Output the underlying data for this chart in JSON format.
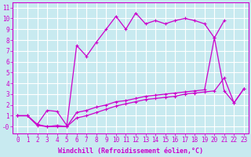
{
  "background_color": "#c8eaf0",
  "grid_color": "#ffffff",
  "line_color": "#cc00cc",
  "marker": "+",
  "markersize": 3.5,
  "linewidth": 0.9,
  "xlabel": "Windchill (Refroidissement éolien,°C)",
  "xlabel_fontsize": 6.0,
  "tick_fontsize": 5.5,
  "xlim": [
    -0.5,
    23.5
  ],
  "ylim": [
    -0.6,
    11.5
  ],
  "xticks": [
    0,
    1,
    2,
    3,
    4,
    5,
    6,
    7,
    8,
    9,
    10,
    11,
    12,
    13,
    14,
    15,
    16,
    17,
    18,
    19,
    20,
    21,
    22,
    23
  ],
  "yticks": [
    0,
    1,
    2,
    3,
    4,
    5,
    6,
    7,
    8,
    9,
    10,
    11
  ],
  "ytick_labels": [
    "-0",
    "1",
    "2",
    "3",
    "4",
    "5",
    "6",
    "7",
    "8",
    "9",
    "10",
    "11"
  ],
  "line1_x": [
    0,
    1,
    2,
    3,
    4,
    5,
    6,
    7,
    8,
    9,
    10,
    11,
    12,
    13,
    14,
    15,
    16,
    17,
    18,
    19,
    20,
    21
  ],
  "line1_y": [
    1,
    1,
    0.2,
    1.5,
    1.4,
    0.1,
    7.5,
    6.5,
    7.8,
    9.0,
    10.2,
    9.0,
    10.5,
    9.5,
    9.8,
    9.5,
    9.8,
    10.0,
    9.8,
    9.5,
    8.2,
    9.8
  ],
  "line2_x": [
    0,
    1,
    2,
    3,
    4,
    5,
    6,
    7,
    8,
    9,
    10,
    11,
    12,
    13,
    14,
    15,
    16,
    17,
    18,
    19,
    20,
    21,
    22,
    23
  ],
  "line2_y": [
    1,
    1,
    0.1,
    0.0,
    0.1,
    0.0,
    0.8,
    1.0,
    1.3,
    1.6,
    1.9,
    2.1,
    2.3,
    2.5,
    2.6,
    2.7,
    2.8,
    3.0,
    3.1,
    3.2,
    3.3,
    4.5,
    2.2,
    3.5
  ],
  "line3_x": [
    0,
    1,
    2,
    3,
    4,
    5,
    6,
    7,
    8,
    9,
    10,
    11,
    12,
    13,
    14,
    15,
    16,
    17,
    18,
    19,
    20,
    21,
    22,
    23
  ],
  "line3_y": [
    1,
    1,
    0.2,
    0.0,
    0.0,
    0.0,
    1.3,
    1.5,
    1.8,
    2.0,
    2.3,
    2.4,
    2.6,
    2.8,
    2.9,
    3.0,
    3.1,
    3.2,
    3.3,
    3.4,
    8.2,
    3.3,
    2.2,
    3.5
  ]
}
